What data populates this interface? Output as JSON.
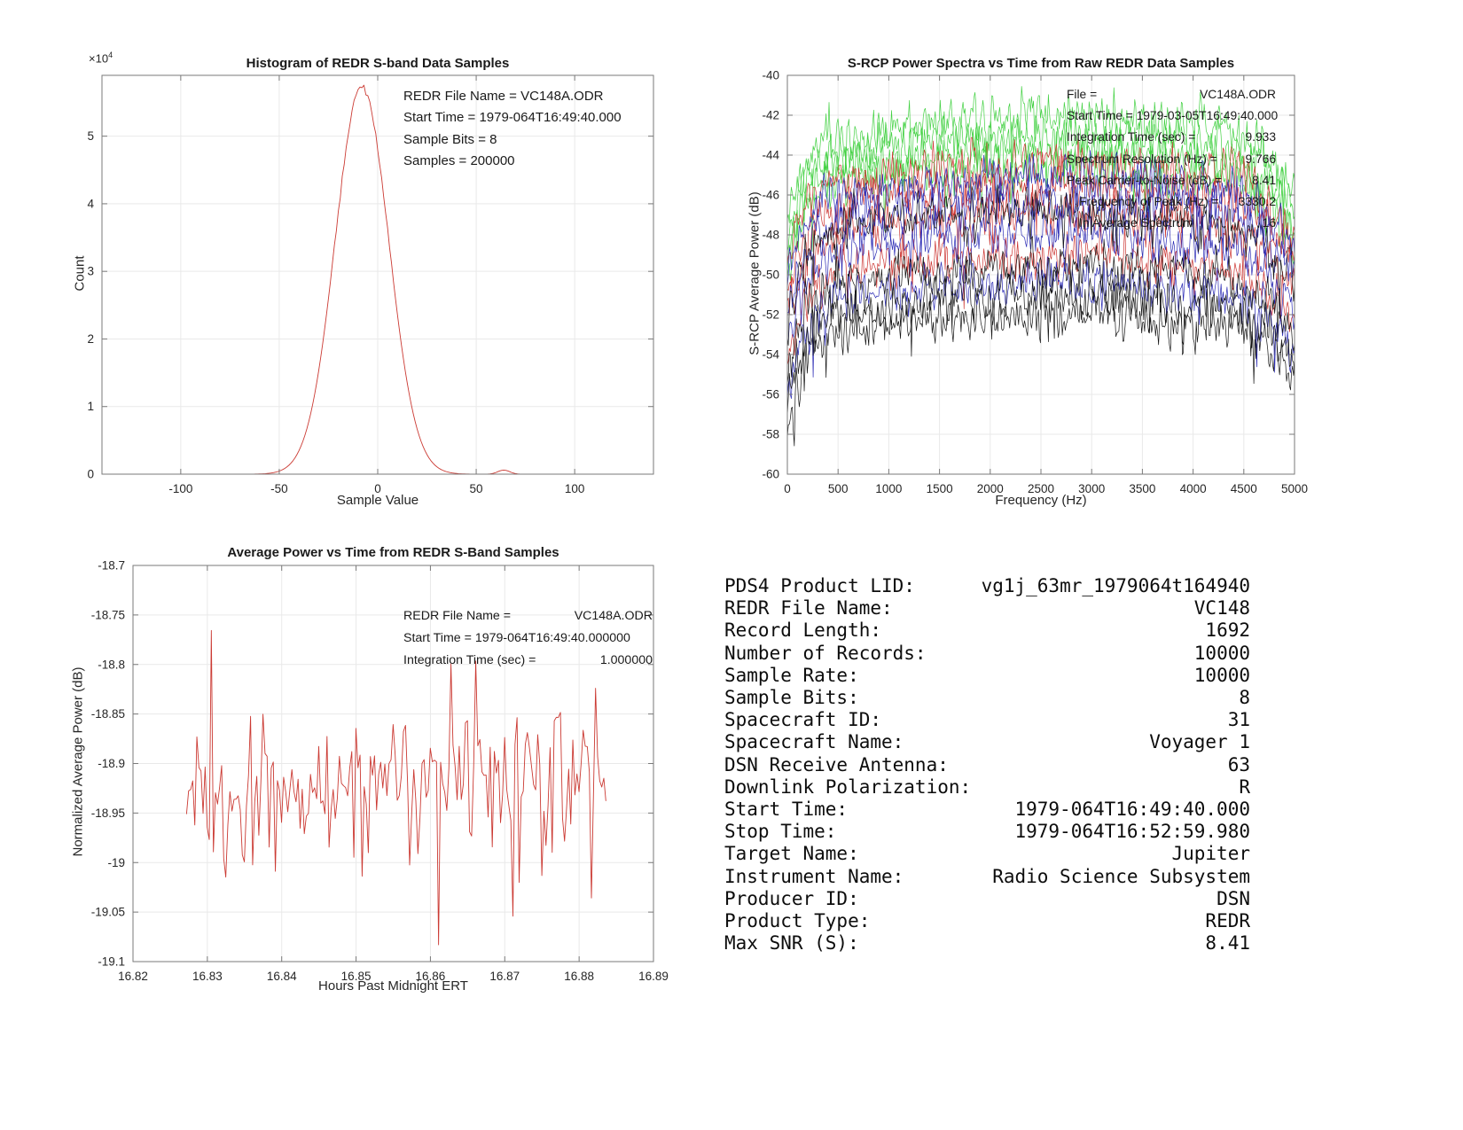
{
  "style": {
    "background": "#ffffff",
    "grid_color": "#e9e9e9",
    "frame_color": "#7a7a7a",
    "tick_text_color": "#262626"
  },
  "chart_data": [
    {
      "id": "histogram",
      "type": "line",
      "title": "Histogram of REDR S-band Data Samples",
      "xlabel": "Sample Value",
      "ylabel": "Count",
      "y_exponent_base": "×10",
      "y_exponent_exp": "4",
      "xlim": [
        -140,
        140
      ],
      "ylim": [
        0,
        59000
      ],
      "xticks": [
        -100,
        -50,
        0,
        50,
        100
      ],
      "xtick_labels": [
        "-100",
        "-50",
        "0",
        "50",
        "100"
      ],
      "yticks": [
        0,
        10000,
        20000,
        30000,
        40000,
        50000
      ],
      "ytick_labels": [
        "0",
        "1",
        "2",
        "3",
        "4",
        "5"
      ],
      "grid": true,
      "line_color": "#cb3a33",
      "annotations": [
        {
          "text": "REDR File Name = VC148A.ODR"
        },
        {
          "text": "Start Time = 1979-064T16:49:40.000"
        },
        {
          "text": "Sample Bits = 8"
        },
        {
          "text": "Samples = 200000"
        }
      ],
      "curve": {
        "shape": "gaussian",
        "mean": -8,
        "sigma": 13.5,
        "peak_count": 57500,
        "x_range": [
          -86,
          72
        ],
        "x_step": 1,
        "tail_bump": {
          "center": 64,
          "sigma": 3,
          "peak": 600
        },
        "seed": 3
      }
    },
    {
      "id": "spectra",
      "type": "line-multi",
      "title": "S-RCP Power Spectra vs Time from Raw REDR Data Samples",
      "xlabel": "Frequency (Hz)",
      "ylabel": "S-RCP Average Power (dB)",
      "xlim": [
        0,
        5000
      ],
      "ylim": [
        -60,
        -40
      ],
      "xticks": [
        0,
        500,
        1000,
        1500,
        2000,
        2500,
        3000,
        3500,
        4000,
        4500,
        5000
      ],
      "xtick_labels": [
        "0",
        "500",
        "1000",
        "1500",
        "2000",
        "2500",
        "3000",
        "3500",
        "4000",
        "4500",
        "5000"
      ],
      "yticks": [
        -60,
        -58,
        -56,
        -54,
        -52,
        -50,
        -48,
        -46,
        -44,
        -42,
        -40
      ],
      "ytick_labels": [
        "-60",
        "-58",
        "-56",
        "-54",
        "-52",
        "-50",
        "-48",
        "-46",
        "-44",
        "-42",
        "-40"
      ],
      "grid": true,
      "annotations": [
        {
          "label": "File =",
          "value": "VC148A.ODR"
        },
        {
          "label": "Start Time = 1979-03-05T16:49:40.000",
          "value": ""
        },
        {
          "label": "Integration Time (sec) =",
          "value": "9.933"
        },
        {
          "label": "Spectrum Resolution (Hz) =",
          "value": "9.766"
        },
        {
          "label": "Peak Carrier-to-Noise (dB) =",
          "value": "8.41"
        },
        {
          "label": "Frequency of Peak (Hz) =",
          "value": "3330.2",
          "indent": true
        },
        {
          "label": "In Average Spectrum",
          "value": "16",
          "indent": true
        }
      ],
      "series": [
        {
          "name": "spectrum-1",
          "color": "#141414",
          "plateau_db": -53.2
        },
        {
          "name": "spectrum-2",
          "color": "#cc3532",
          "plateau_db": -50.3
        },
        {
          "name": "spectrum-3",
          "color": "#2b2bb5",
          "plateau_db": -51.6
        },
        {
          "name": "spectrum-4",
          "color": "#43d143",
          "plateau_db": -45.8
        },
        {
          "name": "spectrum-5",
          "color": "#141414",
          "plateau_db": -52.2
        },
        {
          "name": "spectrum-6",
          "color": "#cc3532",
          "plateau_db": -48.2
        },
        {
          "name": "spectrum-7",
          "color": "#2b2bb5",
          "plateau_db": -49.2
        },
        {
          "name": "spectrum-8",
          "color": "#43d143",
          "plateau_db": -45.0
        },
        {
          "name": "spectrum-9",
          "color": "#141414",
          "plateau_db": -50.8
        },
        {
          "name": "spectrum-10",
          "color": "#cc3532",
          "plateau_db": -46.8
        },
        {
          "name": "spectrum-11",
          "color": "#2b2bb5",
          "plateau_db": -47.6
        },
        {
          "name": "spectrum-12",
          "color": "#43d143",
          "plateau_db": -44.2
        },
        {
          "name": "spectrum-13",
          "color": "#141414",
          "plateau_db": -48.0
        },
        {
          "name": "spectrum-14",
          "color": "#cc3532",
          "plateau_db": -45.6
        },
        {
          "name": "spectrum-15",
          "color": "#2b2bb5",
          "plateau_db": -46.4
        },
        {
          "name": "spectrum-16",
          "color": "#43d143",
          "plateau_db": -43.3
        }
      ],
      "envelope": {
        "low_freq_dip_db": -4.5,
        "dip_decay_hz": 140,
        "dome_peak_hz": 2600,
        "dome_amp_db": 1.2,
        "rolloff_start_hz": 4250,
        "rolloff_db_at_end": -2.6,
        "noise_sd_db": 0.82,
        "neg_spike_prob": 0.035,
        "neg_spike_max_db": 2.2
      },
      "points_per_series": 512,
      "seed": 42
    },
    {
      "id": "avg-power",
      "type": "line",
      "title": "Average Power vs Time from REDR S-Band Samples",
      "xlabel": "Hours Past Midnight ERT",
      "ylabel": "Normalized Average Power (dB)",
      "xlim": [
        16.82,
        16.89
      ],
      "ylim": [
        -19.1,
        -18.7
      ],
      "xticks": [
        16.82,
        16.83,
        16.84,
        16.85,
        16.86,
        16.87,
        16.88,
        16.89
      ],
      "xtick_labels": [
        "16.82",
        "16.83",
        "16.84",
        "16.85",
        "16.86",
        "16.87",
        "16.88",
        "16.89"
      ],
      "yticks": [
        -19.1,
        -19.05,
        -19,
        -18.95,
        -18.9,
        -18.85,
        -18.8,
        -18.75,
        -18.7
      ],
      "ytick_labels": [
        "-19.1",
        "-19.05",
        "-19",
        "-18.95",
        "-18.9",
        "-18.85",
        "-18.8",
        "-18.75",
        "-18.7"
      ],
      "grid": true,
      "line_color": "#cb3a33",
      "annotations": [
        {
          "label": "REDR File Name =",
          "value": "VC148A.ODR"
        },
        {
          "label": "Start Time = 1979-064T16:49:40.000000",
          "value": ""
        },
        {
          "label": "Integration Time (sec) =",
          "value": "1.000000"
        }
      ],
      "series_stats": {
        "x_start": 16.8272,
        "x_end": 16.8836,
        "n_points": 204,
        "mean_db": -18.92,
        "sd_db": 0.048,
        "min_db": -19.1,
        "max_db": -18.725,
        "spike_prob": 0.06
      },
      "seed": 1979064
    },
    {
      "id": "info-table",
      "type": "table",
      "rows": [
        {
          "label": "PDS4 Product LID:",
          "value": "vg1j_63mr_1979064t164940"
        },
        {
          "label": "REDR File Name:",
          "value": "VC148"
        },
        {
          "label": "Record Length:",
          "value": "1692"
        },
        {
          "label": "Number of Records:",
          "value": "10000"
        },
        {
          "label": "Sample Rate:",
          "value": "10000"
        },
        {
          "label": "Sample Bits:",
          "value": "8"
        },
        {
          "label": "Spacecraft ID:",
          "value": "31"
        },
        {
          "label": "Spacecraft Name:",
          "value": "Voyager 1"
        },
        {
          "label": "DSN Receive Antenna:",
          "value": "63"
        },
        {
          "label": "Downlink Polarization:",
          "value": "R"
        },
        {
          "label": "Start Time:",
          "value": "1979-064T16:49:40.000"
        },
        {
          "label": "Stop Time:",
          "value": "1979-064T16:52:59.980"
        },
        {
          "label": "Target Name:",
          "value": "Jupiter"
        },
        {
          "label": "Instrument Name:",
          "value": "Radio Science Subsystem"
        },
        {
          "label": "Producer ID:",
          "value": "DSN"
        },
        {
          "label": "Product Type:",
          "value": "REDR"
        },
        {
          "label": "Max SNR (S):",
          "value": "8.41"
        }
      ]
    }
  ]
}
